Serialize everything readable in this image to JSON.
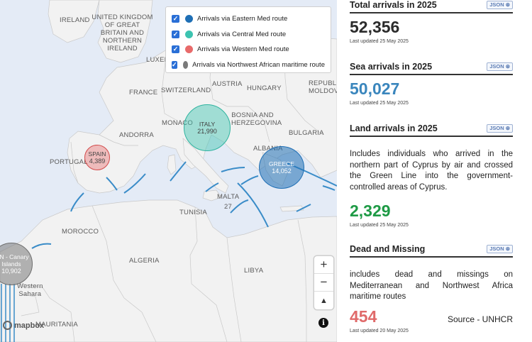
{
  "map": {
    "labels": {
      "ireland": "IRELAND",
      "uk": "UNITED KINGDOM\nOF GREAT\nBRITAIN AND\nNORTHERN\nIRELAND",
      "luxembourg": "LUXEM",
      "austria": "AUSTRIA",
      "france": "FRANCE",
      "switzerland": "SWITZERLAND",
      "hungary": "HUNGARY",
      "moldova": "REPUBLIC\nMOLDOV",
      "bosnia": "BOSNIA AND\nHERZEGOVINA",
      "monaco": "MONACO",
      "bulgaria": "BULGARIA",
      "andorra": "ANDORRA",
      "albania": "ALBANIA",
      "portugal": "PORTUGAL",
      "tunisia": "TUNISIA",
      "malta": "MALTA",
      "malta_value": "27",
      "morocco": "MOROCCO",
      "algeria": "ALGERIA",
      "libya": "LIBYA",
      "western_sahara": "Western\nSahara",
      "mauritania": "MAURITANIA"
    },
    "bubbles": {
      "italy": {
        "name": "ITALY",
        "value": "21,990"
      },
      "spain": {
        "name": "SPAIN",
        "value": "4,389"
      },
      "greece": {
        "name": "GREECE",
        "value": "14,052"
      },
      "canary": {
        "name": "AIN - Canary\nIslands",
        "value": "10,902"
      }
    },
    "legend": [
      {
        "label": "Arrivals via Eastern Med route",
        "color": "#1f6fb5"
      },
      {
        "label": "Arrivals via Central Med route",
        "color": "#3cc3b0"
      },
      {
        "label": "Arrivals via Western Med route",
        "color": "#e86a6a"
      },
      {
        "label": "Arrivals via Northwest African maritime route",
        "color": "#7a7a7a"
      }
    ],
    "controls": {
      "zoom_in": "+",
      "zoom_out": "−",
      "compass": "▲",
      "info": "i"
    },
    "attribution": "mapbox"
  },
  "panel": {
    "total": {
      "title": "Total arrivals in 2025",
      "value": "52,356",
      "updated": "Last updated 25 May 2025",
      "color": "#2b2b2b"
    },
    "sea": {
      "title": "Sea arrivals in 2025",
      "value": "50,027",
      "updated": "Last updated 25 May 2025",
      "color": "#3a86bd"
    },
    "land": {
      "title": "Land arrivals in 2025",
      "desc": "Includes individuals who arrived in the northern part of Cyprus by air and crossed the Green Line into the government-controlled areas of Cyprus.",
      "value": "2,329",
      "updated": "Last updated 25 May 2025",
      "color": "#1e9a45"
    },
    "dead": {
      "title": "Dead and Missing",
      "desc": "includes dead and missings on Mediterranean and Northwest Africa maritime routes",
      "value": "454",
      "source": "Source - UNHCR",
      "updated": "Last updated 20 May 2025",
      "color": "#e06a6a"
    },
    "json_label": "JSON"
  }
}
